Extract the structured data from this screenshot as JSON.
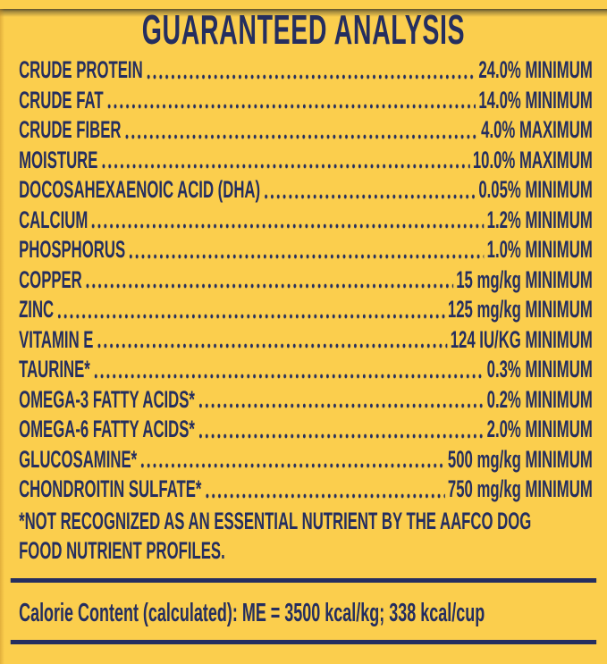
{
  "colors": {
    "background": "#fbce4d",
    "ink": "#252e5f"
  },
  "panel": {
    "title": "GUARANTEED ANALYSIS"
  },
  "analysis": {
    "rows": [
      {
        "name": "CRUDE PROTEIN",
        "value": "24.0% MINIMUM"
      },
      {
        "name": "CRUDE FAT",
        "value": "14.0% MINIMUM"
      },
      {
        "name": "CRUDE FIBER",
        "value": "4.0% MAXIMUM"
      },
      {
        "name": "MOISTURE",
        "value": "10.0% MAXIMUM"
      },
      {
        "name": "DOCOSAHEXAENOIC ACID (DHA)",
        "value": "0.05% MINIMUM"
      },
      {
        "name": "CALCIUM",
        "value": "1.2% MINIMUM"
      },
      {
        "name": "PHOSPHORUS",
        "value": "1.0% MINIMUM"
      },
      {
        "name": "COPPER",
        "value": "15 mg/kg MINIMUM"
      },
      {
        "name": "ZINC",
        "value": "125 mg/kg MINIMUM"
      },
      {
        "name": "VITAMIN E",
        "value": "124 IU/KG MINIMUM"
      },
      {
        "name": "TAURINE*",
        "value": "0.3% MINIMUM"
      },
      {
        "name": "OMEGA-3 FATTY ACIDS*",
        "value": "0.2% MINIMUM"
      },
      {
        "name": "OMEGA-6 FATTY ACIDS*",
        "value": "2.0% MINIMUM"
      },
      {
        "name": "GLUCOSAMINE*",
        "value": "500 mg/kg MINIMUM"
      },
      {
        "name": "CHONDROITIN SULFATE*",
        "value": "750 mg/kg MINIMUM"
      }
    ],
    "footnote": {
      "lines": {
        "0": "*NOT RECOGNIZED AS AN ESSENTIAL NUTRIENT BY THE AAFCO DOG",
        "1": "FOOD NUTRIENT PROFILES."
      }
    }
  },
  "calorie": {
    "label": "Calorie Content (calculated):",
    "value": "ME = 3500 kcal/kg; 338 kcal/cup"
  }
}
